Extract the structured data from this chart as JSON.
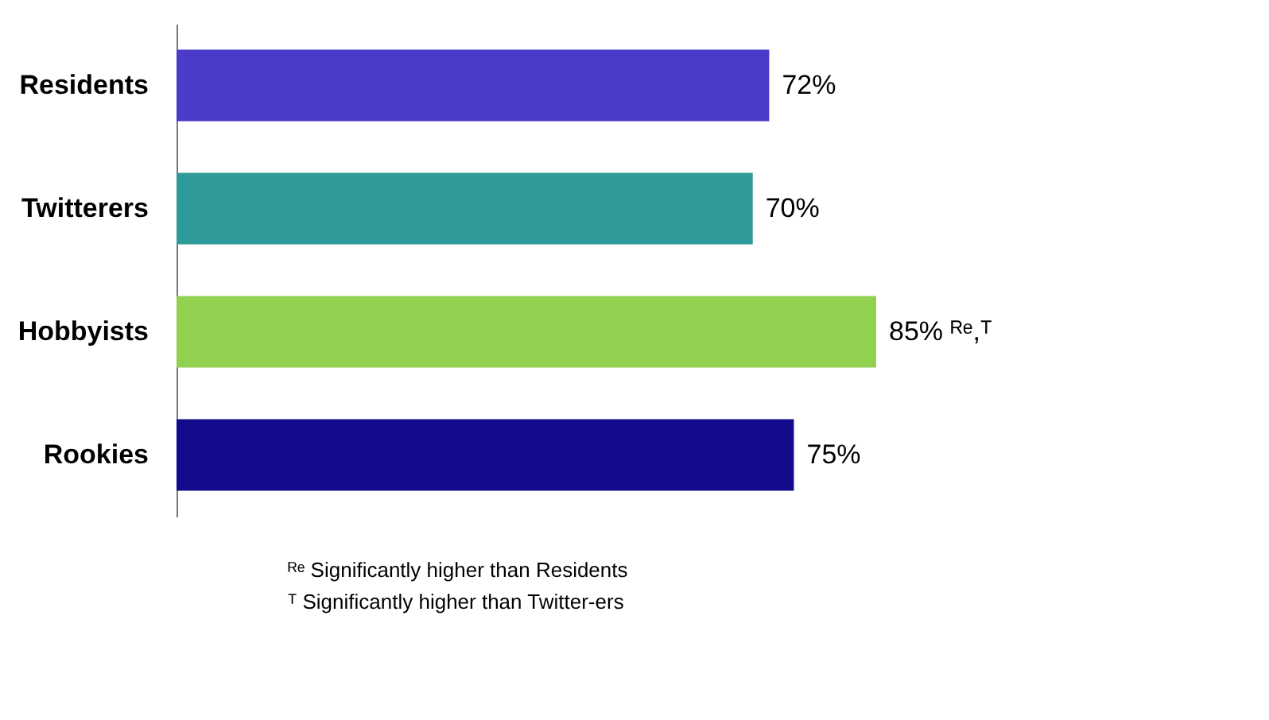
{
  "chart_data": {
    "type": "bar",
    "orientation": "horizontal",
    "categories": [
      "Residents",
      "Twitterers",
      "Hobbyists",
      "Rookies"
    ],
    "values": [
      72,
      70,
      85,
      75
    ],
    "colors": [
      "#4a3bc8",
      "#2e9b9a",
      "#92d050",
      "#140a8c"
    ],
    "value_labels": [
      "72%",
      "70%",
      "85% ᴿᵉ,ᵀ",
      "75%"
    ],
    "annotations": [
      "ᴿᵉ Significantly higher than Residents",
      "ᵀ Significantly higher than Twitter-ers"
    ],
    "grid": false
  }
}
